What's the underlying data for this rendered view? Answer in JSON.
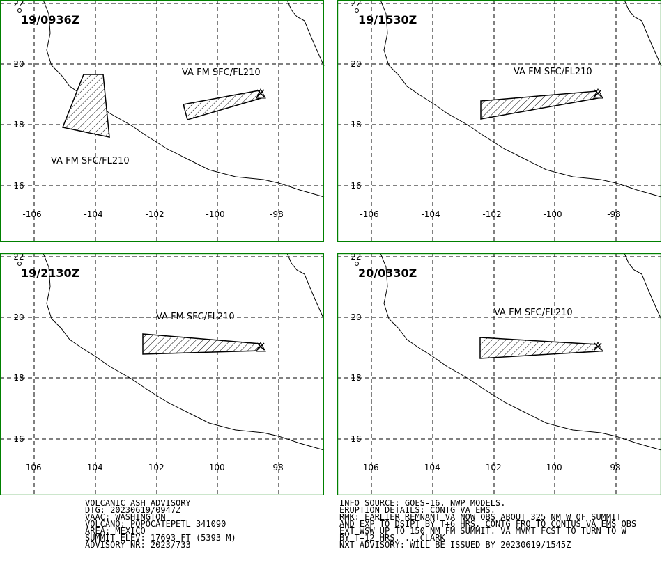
{
  "panels": [
    {
      "time": "19/0936Z",
      "annotations": [
        "VA FM SFC/FL210",
        "VA FM SFC/FL210"
      ]
    },
    {
      "time": "19/1530Z",
      "annotations": [
        "VA FM SFC/FL210"
      ]
    },
    {
      "time": "19/2130Z",
      "annotations": [
        "VA FM SFC/FL210"
      ]
    },
    {
      "time": "20/0330Z",
      "annotations": [
        "VA FM SFC/FL210"
      ]
    }
  ],
  "lat_labels": [
    "22",
    "20",
    "18",
    "16"
  ],
  "lon_labels": [
    "-106",
    "-104",
    "-102",
    "-100",
    "-98"
  ],
  "advisory_left": [
    "VOLCANIC ASH ADVISORY",
    "DTG: 20230619/0947Z",
    "VAAC: WASHINGTON",
    "VOLCANO: POPOCATEPETL 341090",
    "AREA: MEXICO",
    "SUMMIT ELEV: 17693 FT (5393 M)",
    "ADVISORY NR: 2023/733"
  ],
  "advisory_right": [
    "INFO SOURCE: GOES-16. NWP MODELS.",
    "ERUPTION DETAILS: CONTG VA EMS.",
    "RMK: EARLIER REMNANT VA NOW OBS ABOUT 325 NM W OF SUMMIT",
    "AND EXP TO DSIPT BY T+6 HRS. CONTG FRQ TO CONTUS VA EMS OBS",
    "EXT WSW UP TO 150 NM FM SUMMIT. VA MVMT FCST TO TURN TO W",
    "BY T+12 HRS. ...CLARK",
    "NXT ADVISORY: WILL BE ISSUED BY 20230619/1545Z"
  ]
}
